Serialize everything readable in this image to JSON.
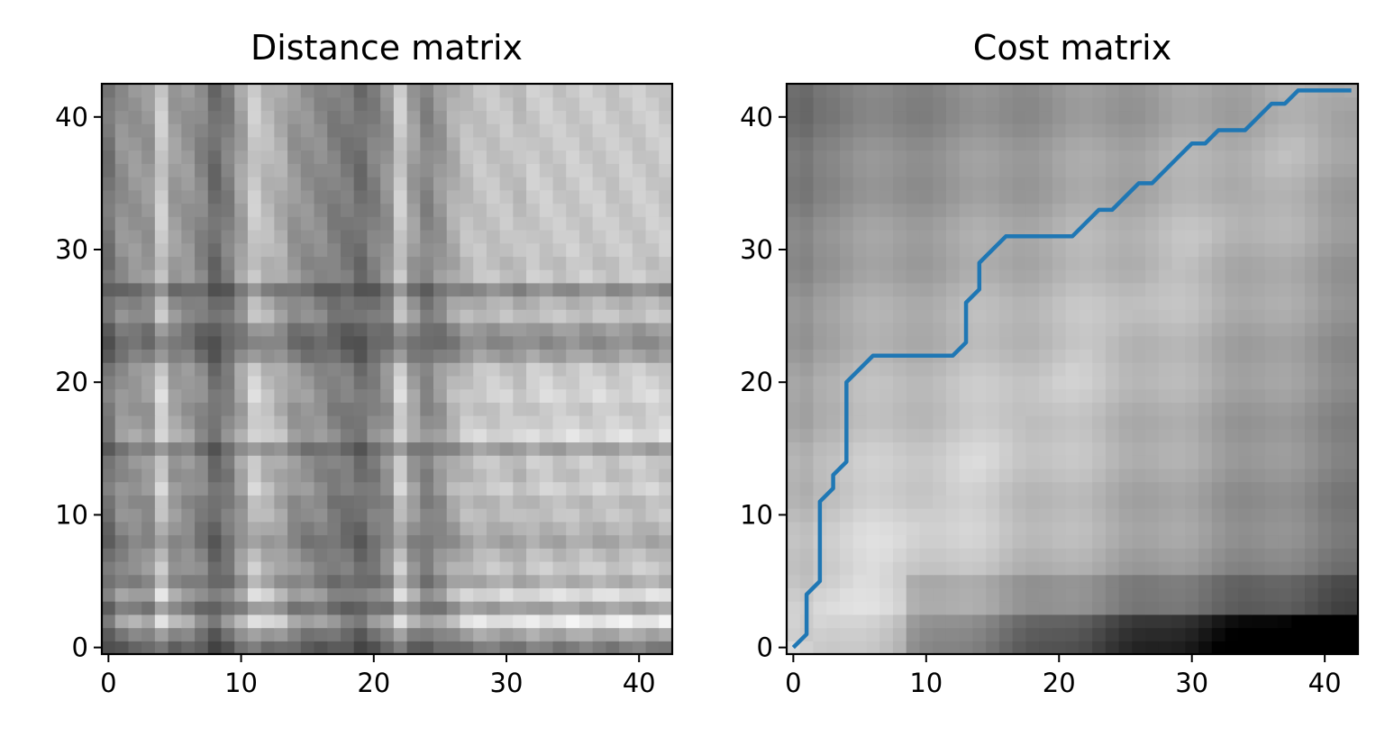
{
  "chart_data": [
    {
      "type": "heatmap",
      "title": "Distance matrix",
      "xlabel": "",
      "ylabel": "",
      "colormap": "gray",
      "grid": false,
      "size": 43,
      "xlim": [
        -0.5,
        42.5
      ],
      "ylim": [
        -0.5,
        42.5
      ],
      "xticks": [
        0,
        10,
        20,
        30,
        40
      ],
      "yticks": [
        0,
        10,
        20,
        30,
        40
      ],
      "row_profile": [
        0.88,
        0.55,
        0.05,
        0.6,
        0.15,
        0.5,
        0.3,
        0.4,
        0.55,
        0.45,
        0.35,
        0.4,
        0.25,
        0.35,
        0.3,
        0.6,
        0.15,
        0.25,
        0.3,
        0.2,
        0.25,
        0.3,
        0.6,
        0.75,
        0.65,
        0.35,
        0.45,
        0.75,
        0.3,
        0.35,
        0.3,
        0.3,
        0.3,
        0.3,
        0.3,
        0.3,
        0.3,
        0.3,
        0.3,
        0.3,
        0.3,
        0.3,
        0.3
      ],
      "col_profile": [
        0.85,
        0.6,
        0.55,
        0.55,
        0.1,
        0.5,
        0.55,
        0.7,
        0.92,
        0.75,
        0.45,
        0.1,
        0.25,
        0.35,
        0.55,
        0.6,
        0.65,
        0.75,
        0.8,
        0.9,
        0.75,
        0.6,
        0.1,
        0.5,
        0.7,
        0.55,
        0.35,
        0.2,
        0.15,
        0.15,
        0.15,
        0.2,
        0.1,
        0.1,
        0.12,
        0.1,
        0.1,
        0.1,
        0.12,
        0.1,
        0.1,
        0.1,
        0.1
      ]
    },
    {
      "type": "heatmap",
      "title": "Cost matrix",
      "xlabel": "",
      "ylabel": "",
      "colormap": "gray",
      "grid": false,
      "size": 43,
      "xlim": [
        -0.5,
        42.5
      ],
      "ylim": [
        -0.5,
        42.5
      ],
      "xticks": [
        0,
        10,
        20,
        30,
        40
      ],
      "yticks": [
        0,
        10,
        20,
        30,
        40
      ],
      "series": [
        {
          "type": "line",
          "color": "#1f77b4",
          "points": [
            [
              0,
              0
            ],
            [
              1,
              1
            ],
            [
              1,
              4
            ],
            [
              2,
              5
            ],
            [
              2,
              11
            ],
            [
              3,
              12
            ],
            [
              3,
              13
            ],
            [
              4,
              14
            ],
            [
              4,
              20
            ],
            [
              5,
              21
            ],
            [
              6,
              22
            ],
            [
              7,
              22
            ],
            [
              8,
              22
            ],
            [
              9,
              22
            ],
            [
              10,
              22
            ],
            [
              11,
              22
            ],
            [
              12,
              22
            ],
            [
              13,
              23
            ],
            [
              13,
              26
            ],
            [
              14,
              27
            ],
            [
              14,
              29
            ],
            [
              15,
              30
            ],
            [
              16,
              31
            ],
            [
              17,
              31
            ],
            [
              18,
              31
            ],
            [
              19,
              31
            ],
            [
              20,
              31
            ],
            [
              21,
              31
            ],
            [
              22,
              32
            ],
            [
              23,
              33
            ],
            [
              24,
              33
            ],
            [
              25,
              34
            ],
            [
              26,
              35
            ],
            [
              27,
              35
            ],
            [
              28,
              36
            ],
            [
              29,
              37
            ],
            [
              30,
              38
            ],
            [
              31,
              38
            ],
            [
              32,
              39
            ],
            [
              33,
              39
            ],
            [
              34,
              39
            ],
            [
              35,
              40
            ],
            [
              36,
              41
            ],
            [
              37,
              41
            ],
            [
              38,
              42
            ],
            [
              39,
              42
            ],
            [
              40,
              42
            ],
            [
              41,
              42
            ],
            [
              42,
              42
            ]
          ]
        }
      ]
    }
  ]
}
